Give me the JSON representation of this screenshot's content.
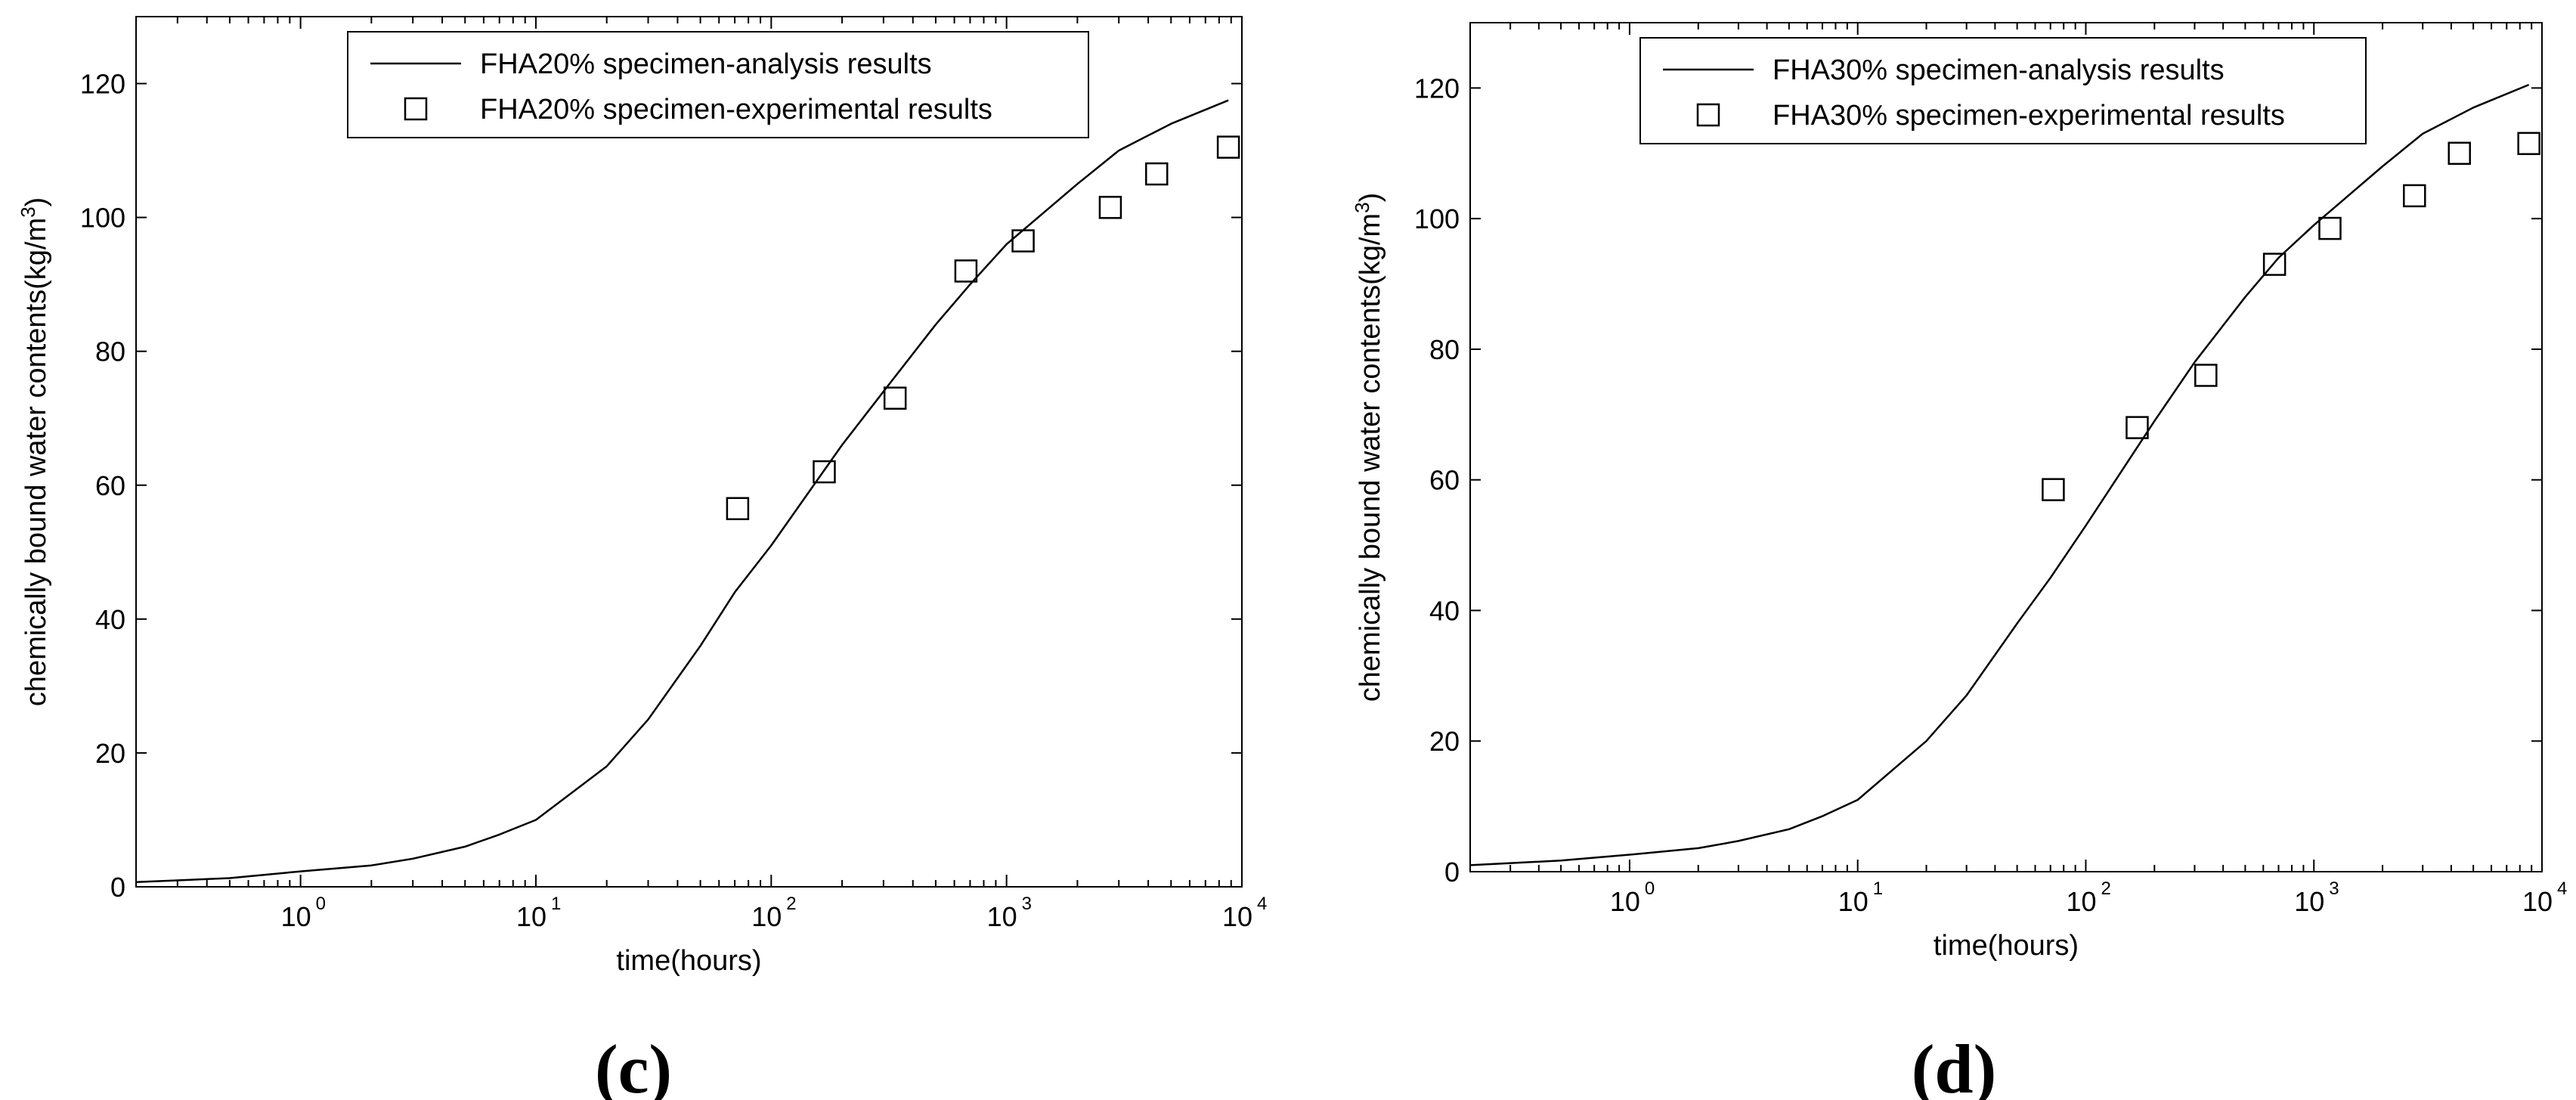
{
  "chart_data": [
    {
      "type": "line",
      "panel_label": "(c)",
      "xlabel": "time(hours)",
      "ylabel": "chemically bound water contents(kg/m",
      "ylabel_sup": "3",
      "ylabel_close": ")",
      "x_scale": "log",
      "xlim": [
        0.2,
        10000
      ],
      "ylim": [
        0,
        130
      ],
      "x_ticks": [
        {
          "base": "10",
          "exp": "0",
          "value": 1
        },
        {
          "base": "10",
          "exp": "1",
          "value": 10
        },
        {
          "base": "10",
          "exp": "2",
          "value": 100
        },
        {
          "base": "10",
          "exp": "3",
          "value": 1000
        },
        {
          "base": "10",
          "exp": "4",
          "value": 10000
        }
      ],
      "y_ticks": [
        "0",
        "20",
        "40",
        "60",
        "80",
        "100",
        "120"
      ],
      "grid": false,
      "legend_position": "top-center",
      "series": [
        {
          "name": "FHA20% specimen-analysis results",
          "kind": "line",
          "x": [
            0.2,
            0.5,
            1,
            2,
            3,
            5,
            7,
            10,
            20,
            30,
            50,
            70,
            100,
            200,
            300,
            500,
            700,
            1000,
            2000,
            3000,
            5000,
            8760
          ],
          "y": [
            0.7,
            1.3,
            2.3,
            3.2,
            4.2,
            6,
            7.8,
            10,
            18,
            25,
            36,
            44,
            51,
            66,
            74,
            84,
            90,
            96,
            105,
            110,
            114,
            117.5
          ]
        },
        {
          "name": "FHA20% specimen-experimental results",
          "kind": "scatter",
          "marker": "square",
          "x": [
            72,
            168,
            336,
            672,
            1176,
            2760,
            4344,
            8760
          ],
          "y": [
            56.5,
            62,
            73,
            92,
            96.5,
            101.5,
            106.5,
            110.5
          ]
        }
      ]
    },
    {
      "type": "line",
      "panel_label": "(d)",
      "xlabel": "time(hours)",
      "ylabel": "chemically bound water contents(kg/m",
      "ylabel_sup": "3",
      "ylabel_close": ")",
      "x_scale": "log",
      "xlim": [
        0.2,
        10000
      ],
      "ylim": [
        0,
        130
      ],
      "x_ticks": [
        {
          "base": "10",
          "exp": "0",
          "value": 1
        },
        {
          "base": "10",
          "exp": "1",
          "value": 10
        },
        {
          "base": "10",
          "exp": "2",
          "value": 100
        },
        {
          "base": "10",
          "exp": "3",
          "value": 1000
        },
        {
          "base": "10",
          "exp": "4",
          "value": 10000
        }
      ],
      "y_ticks": [
        "0",
        "20",
        "40",
        "60",
        "80",
        "100",
        "120"
      ],
      "grid": false,
      "legend_position": "top-center",
      "series": [
        {
          "name": "FHA30% specimen-analysis results",
          "kind": "line",
          "x": [
            0.2,
            0.5,
            1,
            2,
            3,
            5,
            7,
            10,
            20,
            30,
            50,
            70,
            100,
            200,
            300,
            500,
            700,
            1000,
            2000,
            3000,
            5000,
            8760
          ],
          "y": [
            1,
            1.7,
            2.6,
            3.6,
            4.7,
            6.5,
            8.5,
            11,
            20,
            27,
            38,
            45,
            53,
            69,
            78,
            88,
            94,
            99,
            108,
            113,
            117,
            120.5
          ]
        },
        {
          "name": "FHA30% specimen-experimental results",
          "kind": "scatter",
          "marker": "square",
          "x": [
            72,
            168,
            336,
            672,
            1176,
            2760,
            4344,
            8760
          ],
          "y": [
            58.5,
            68,
            76,
            93,
            98.5,
            103.5,
            110,
            111.5
          ]
        }
      ]
    }
  ]
}
